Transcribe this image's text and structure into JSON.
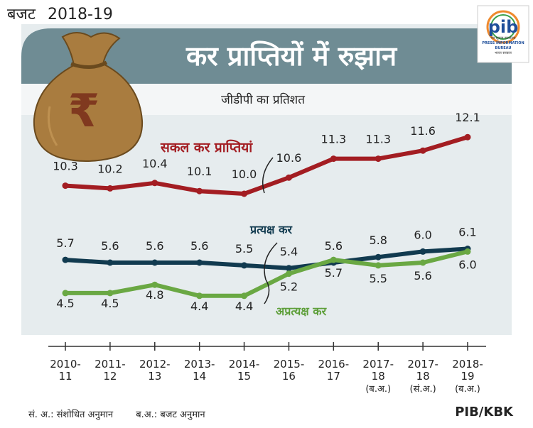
{
  "header": {
    "label": "बजट",
    "year": "2018-19"
  },
  "logo": {
    "text": "pib",
    "tagline": "पत्र सूचना कार्यालय",
    "subtitle": "PRESS INFORMATION BUREAU",
    "gov": "भारत सरकार"
  },
  "footer": {
    "note_revised": "सं. अ.: संशोधित अनुमान",
    "note_budget": "ब.अ.: बजट  अनुमान",
    "credit": "PIB/KBK"
  },
  "colors": {
    "banner": "#6f8c94",
    "panel": "#dde6e8",
    "gross": "#a31d22",
    "direct": "#113a4f",
    "indirect": "#6aa843",
    "axis": "#333333"
  },
  "chart_data": {
    "type": "line",
    "title": "कर प्राप्तियों में रुझान",
    "subtitle": "जीडीपी का प्रतिशत",
    "categories": [
      [
        "2010-",
        "11"
      ],
      [
        "2011-",
        "12"
      ],
      [
        "2012-",
        "13"
      ],
      [
        "2013-",
        "14"
      ],
      [
        "2014-",
        "15"
      ],
      [
        "2015-",
        "16"
      ],
      [
        "2016-",
        "17"
      ],
      [
        "2017-",
        "18",
        "(ब.अ.)"
      ],
      [
        "2017-",
        "18",
        "(सं.अ.)"
      ],
      [
        "2018-",
        "19",
        "(ब.अ.)"
      ]
    ],
    "series": [
      {
        "name": "सकल कर प्राप्तियां",
        "key": "gross",
        "values": [
          10.3,
          10.2,
          10.4,
          10.1,
          10.0,
          10.6,
          11.3,
          11.3,
          11.6,
          12.1
        ]
      },
      {
        "name": "प्रत्यक्ष कर",
        "key": "direct",
        "values": [
          5.7,
          5.6,
          5.6,
          5.6,
          5.5,
          5.4,
          5.6,
          5.8,
          6.0,
          6.1
        ]
      },
      {
        "name": "अप्रत्यक्ष कर",
        "key": "indirect",
        "values": [
          4.5,
          4.5,
          4.8,
          4.4,
          4.4,
          5.2,
          5.7,
          5.5,
          5.6,
          6.0
        ]
      }
    ],
    "xlabel": "",
    "ylabel": "जीडीपी का प्रतिशत"
  }
}
